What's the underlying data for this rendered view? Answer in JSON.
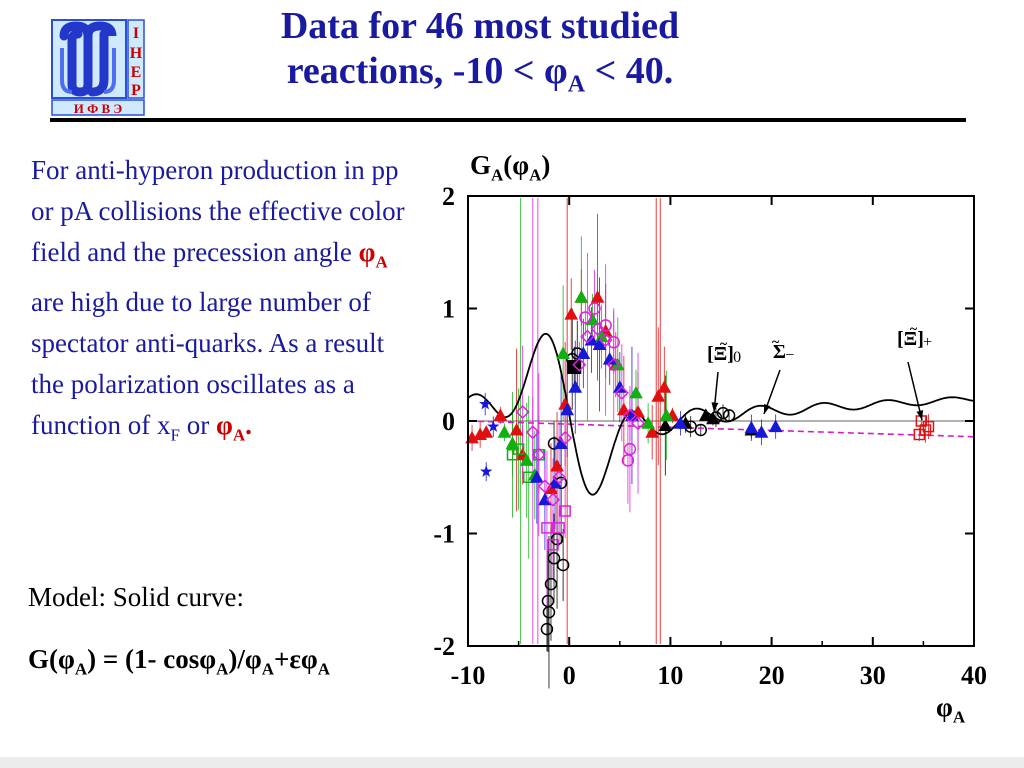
{
  "header": {
    "title_line1": "Data for 46 most studied",
    "title_line2_pre": "reactions,  -10 < φ",
    "title_line2_sub": "A",
    "title_line2_post": " < 40."
  },
  "logo": {
    "letters_right": [
      "I",
      "H",
      "E",
      "P"
    ],
    "letters_bottom": "И Ф В Э",
    "colors": {
      "frame": "#2a4fd8",
      "panel": "#cfe9ff",
      "ring": "#2338c8"
    }
  },
  "description": {
    "part1": "For anti-hyperon production in pp or pA collisions the effective color field and the precession angle ",
    "phi": "φ",
    "phi_sub": "A",
    "part2": "  are high due to large number of spectator anti-quarks. As a result the polarization oscillates as a function of x",
    "xf_sub": "F",
    "part3": " or ",
    "phi_end": "φ",
    "phi_end_sub": "A",
    "dot": "."
  },
  "model": {
    "label": "Model:   Solid curve:",
    "formula_1": "G(φ",
    "formula_1_sub": "A",
    "formula_2": ") = (1- cosφ",
    "formula_2_sub": "A",
    "formula_3": ")/φ",
    "formula_3_sub": "A",
    "formula_4": "+εφ",
    "formula_4_sub": "A"
  },
  "chart_data": {
    "type": "scatter",
    "ylabel": "G",
    "ylabel_sub": "A",
    "ylabel_arg": "(φ",
    "ylabel_arg_sub": "A",
    "ylabel_close": ")",
    "xlabel": "φ",
    "xlabel_sub": "A",
    "xlim": [
      -10,
      40
    ],
    "ylim": [
      -2,
      2
    ],
    "x_ticks": [
      "-10",
      "0",
      "10",
      "20",
      "30",
      "40"
    ],
    "y_ticks": [
      "2",
      "1",
      "0",
      "-1",
      "-2"
    ],
    "zero_line": true,
    "annotations": [
      {
        "text": "[Ξ]",
        "tilde": "~",
        "sup": "0",
        "x": 15,
        "y": 0.05
      },
      {
        "text": "Σ",
        "tilde": "~",
        "sup": "−",
        "x": 18.7,
        "y": 0.07
      },
      {
        "text": "[Ξ]",
        "tilde": "~",
        "sup": "+",
        "x": 35,
        "y": 0.02
      }
    ],
    "colors": {
      "black": "#000000",
      "red": "#e01010",
      "green": "#10b010",
      "blue": "#1818d8",
      "magenta": "#e020e0",
      "curve_dashed": "#d020c0"
    },
    "series": [
      {
        "color": "#000000",
        "marker": "triangle",
        "points": [
          [
            9.5,
            -0.04
          ],
          [
            11.5,
            -0.02
          ],
          [
            13.5,
            0.05
          ],
          [
            14.2,
            0.02
          ],
          [
            18,
            -0.08
          ]
        ]
      },
      {
        "color": "#000000",
        "marker": "circle",
        "points": [
          [
            -2.1,
            -1.6
          ],
          [
            -2.2,
            -1.85
          ],
          [
            -2.0,
            -1.7
          ],
          [
            -1.8,
            -1.45
          ],
          [
            -1.5,
            -1.22
          ],
          [
            -0.6,
            -1.28
          ],
          [
            -1.2,
            -1.05
          ],
          [
            -0.8,
            -0.55
          ],
          [
            -1.5,
            -0.2
          ],
          [
            0.3,
            0.55
          ],
          [
            0.8,
            0.6
          ],
          [
            12,
            -0.05
          ],
          [
            13,
            -0.08
          ],
          [
            14.5,
            0.03
          ],
          [
            15.2,
            0.07
          ],
          [
            15.8,
            0.05
          ]
        ]
      },
      {
        "color": "#000000",
        "marker": "square-filled",
        "points": [
          [
            0.5,
            0.48
          ]
        ]
      },
      {
        "color": "#e01010",
        "marker": "triangle",
        "points": [
          [
            -9.6,
            -0.15
          ],
          [
            -8.8,
            -0.12
          ],
          [
            -8.2,
            -0.1
          ],
          [
            -6.8,
            0.05
          ],
          [
            -5.2,
            -0.08
          ],
          [
            -4.6,
            -0.3
          ],
          [
            -1.8,
            -0.6
          ],
          [
            -1.2,
            -0.4
          ],
          [
            -0.4,
            0.15
          ],
          [
            0.2,
            0.95
          ],
          [
            1.2,
            1.1
          ],
          [
            2.8,
            1.1
          ],
          [
            3.6,
            0.8
          ],
          [
            4.6,
            0.5
          ],
          [
            5.4,
            0.1
          ],
          [
            6.8,
            0.08
          ],
          [
            8.2,
            -0.1
          ],
          [
            8.8,
            0.22
          ],
          [
            9.4,
            0.3
          ],
          [
            10.2,
            0.05
          ]
        ]
      },
      {
        "color": "#e01010",
        "marker": "square",
        "points": [
          [
            34.8,
            0.0
          ],
          [
            35.2,
            -0.08
          ],
          [
            34.6,
            -0.12
          ],
          [
            35.5,
            -0.05
          ]
        ]
      },
      {
        "color": "#10b010",
        "marker": "triangle",
        "points": [
          [
            -6.4,
            -0.1
          ],
          [
            -5.6,
            -0.2
          ],
          [
            -4.2,
            -0.35
          ],
          [
            -3.4,
            -0.48
          ],
          [
            -0.6,
            0.6
          ],
          [
            1.2,
            1.1
          ],
          [
            2.3,
            0.9
          ],
          [
            3.2,
            0.75
          ],
          [
            4.8,
            0.5
          ],
          [
            6.6,
            0.25
          ],
          [
            7.8,
            -0.02
          ],
          [
            9.6,
            0.05
          ]
        ]
      },
      {
        "color": "#10b010",
        "marker": "square",
        "points": [
          [
            -5.6,
            -0.3
          ],
          [
            -5.0,
            -0.25
          ],
          [
            -4.0,
            -0.5
          ],
          [
            -3.0,
            -0.3
          ]
        ]
      },
      {
        "color": "#1818d8",
        "marker": "triangle",
        "points": [
          [
            -3.2,
            -0.5
          ],
          [
            -2.4,
            -0.7
          ],
          [
            -1.4,
            -0.55
          ],
          [
            -0.8,
            -0.2
          ],
          [
            -0.2,
            0.1
          ],
          [
            0.6,
            0.3
          ],
          [
            1.4,
            0.6
          ],
          [
            2.2,
            0.72
          ],
          [
            3.0,
            0.68
          ],
          [
            4.0,
            0.55
          ],
          [
            5.0,
            0.3
          ],
          [
            6.2,
            0.05
          ],
          [
            11.0,
            -0.02
          ],
          [
            18.0,
            -0.06
          ],
          [
            19.0,
            -0.1
          ],
          [
            20.4,
            -0.05
          ]
        ]
      },
      {
        "color": "#1818d8",
        "marker": "star",
        "points": [
          [
            -8.3,
            0.15
          ],
          [
            -7.5,
            -0.05
          ],
          [
            -8.2,
            -0.45
          ]
        ]
      },
      {
        "color": "#e020e0",
        "marker": "circle",
        "points": [
          [
            1.6,
            0.92
          ],
          [
            2.5,
            1.0
          ],
          [
            3.6,
            0.85
          ],
          [
            4.4,
            0.7
          ],
          [
            5.8,
            -0.35
          ],
          [
            6.0,
            -0.25
          ]
        ]
      },
      {
        "color": "#e020e0",
        "marker": "diamond",
        "points": [
          [
            -4.6,
            0.08
          ],
          [
            -3.6,
            -0.1
          ],
          [
            -3.0,
            -0.3
          ],
          [
            -2.4,
            -0.58
          ],
          [
            -1.6,
            -0.7
          ],
          [
            -1.0,
            -0.5
          ],
          [
            -0.4,
            -0.15
          ],
          [
            1.0,
            0.5
          ],
          [
            1.8,
            0.75
          ],
          [
            2.8,
            0.82
          ],
          [
            3.6,
            0.72
          ],
          [
            4.4,
            0.5
          ],
          [
            5.2,
            0.25
          ],
          [
            6.0,
            0.05
          ],
          [
            6.8,
            -0.02
          ]
        ]
      },
      {
        "color": "#e020e0",
        "marker": "square",
        "points": [
          [
            -2.2,
            -0.95
          ],
          [
            -1.6,
            -1.1
          ],
          [
            -1.0,
            -0.95
          ],
          [
            -0.4,
            -0.8
          ]
        ]
      }
    ],
    "model_curve": {
      "epsilon": -0.004,
      "x_range": [
        -10,
        40
      ]
    },
    "dashed_curve": {
      "y_start": 0.0,
      "y_end": -0.14
    }
  }
}
